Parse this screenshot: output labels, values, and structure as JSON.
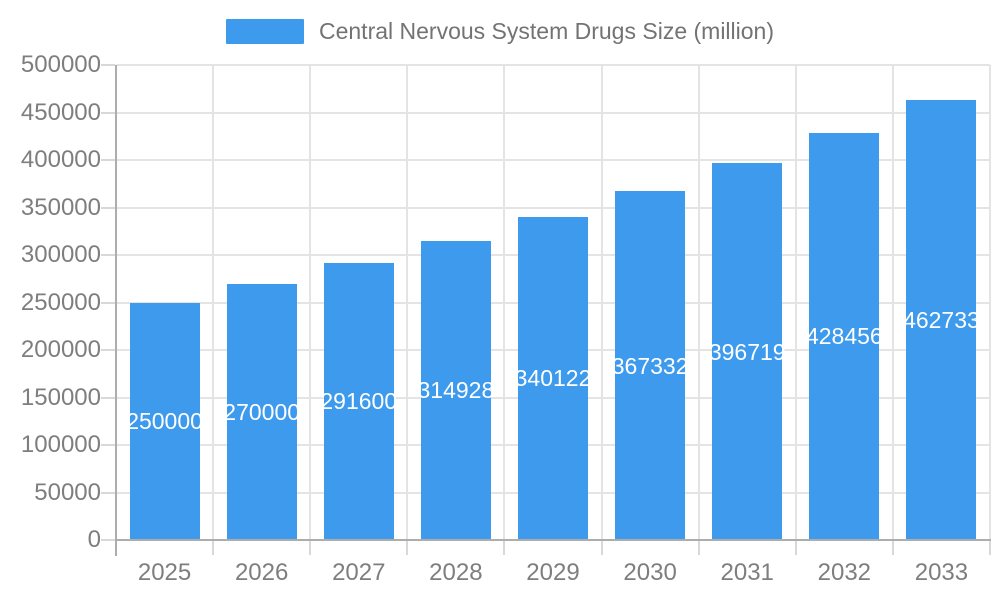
{
  "legend": {
    "label": "Central Nervous System Drugs Size (million)",
    "swatch_color": "#3d9aec"
  },
  "chart_data": {
    "type": "bar",
    "title": "Central Nervous System Drugs Size (million)",
    "categories": [
      "2025",
      "2026",
      "2027",
      "2028",
      "2029",
      "2030",
      "2031",
      "2032",
      "2033"
    ],
    "series": [
      {
        "name": "Central Nervous System Drugs Size (million)",
        "values": [
          250000,
          270000,
          291600,
          314928,
          340122,
          367332,
          396719,
          428456,
          462733
        ]
      }
    ],
    "value_labels": [
      "250000",
      "270000",
      "291600",
      "314928",
      "340122",
      "367332",
      "396719",
      "428456",
      "462733"
    ],
    "xlabel": "",
    "ylabel": "",
    "ylim": [
      0,
      500000
    ],
    "y_tick_step": 50000,
    "y_tick_labels": [
      "0",
      "50000",
      "100000",
      "150000",
      "200000",
      "250000",
      "300000",
      "350000",
      "400000",
      "450000",
      "500000"
    ],
    "grid": true,
    "legend_position": "top",
    "bar_label_position": "inside-center"
  },
  "colors": {
    "bar": "#3d9aec",
    "grid": "#e4e4e4",
    "axis": "#adadad",
    "tick": "#d8d8d8",
    "axis_label": "#7e7e7e",
    "legend_text": "#737373",
    "value_label": "#ffffff",
    "background": "#ffffff"
  }
}
